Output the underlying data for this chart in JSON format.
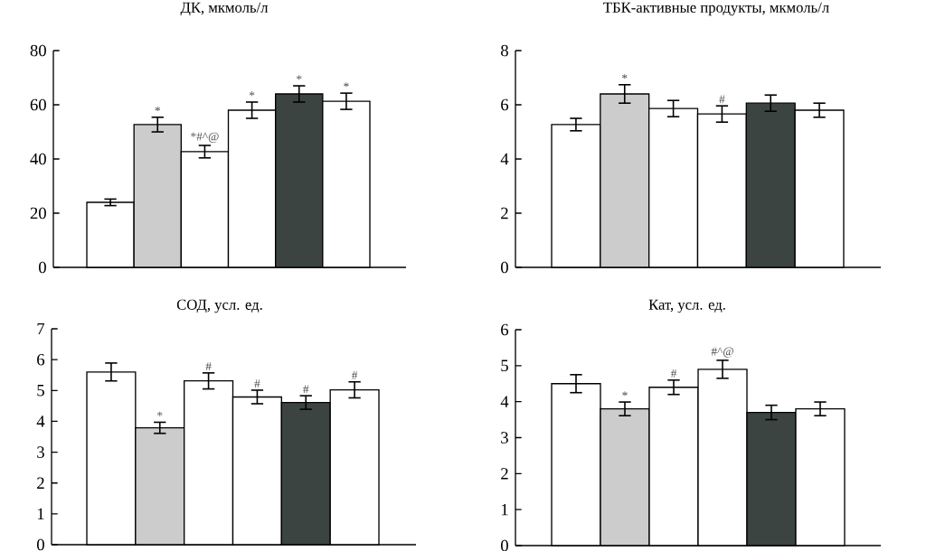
{
  "chart_data": [
    {
      "type": "bar",
      "title": "ДК, мкмоль/л",
      "categories": [
        null,
        null,
        null,
        null,
        null,
        null
      ],
      "values": [
        24,
        52.7,
        42.7,
        58,
        64,
        61.3
      ],
      "errors": [
        1.2,
        2.7,
        2.3,
        3,
        3,
        3
      ],
      "value_labels": [
        null,
        "*",
        "*#^@",
        "*",
        "*",
        "*"
      ],
      "colors": [
        "#ffffff",
        "#cccccc",
        "#ffffff",
        "#ffffff",
        "#3c4442",
        "#ffffff"
      ],
      "ylim": [
        0,
        80
      ],
      "yticks": [
        0,
        20,
        40,
        60,
        80
      ],
      "tick_labels": "y"
    },
    {
      "type": "bar",
      "title": "ТБК-активные продукты, мкмоль/л",
      "categories": [
        null,
        null,
        null,
        null,
        null,
        null
      ],
      "values": [
        5.27,
        6.4,
        5.86,
        5.66,
        6.06,
        5.8
      ],
      "errors": [
        0.23,
        0.34,
        0.3,
        0.3,
        0.3,
        0.26
      ],
      "value_labels": [
        null,
        "*",
        null,
        "#",
        null,
        null
      ],
      "colors": [
        "#ffffff",
        "#cccccc",
        "#ffffff",
        "#ffffff",
        "#3c4442",
        "#ffffff"
      ],
      "ylim": [
        0,
        8
      ],
      "yticks": [
        0,
        2,
        4,
        6,
        8
      ],
      "tick_labels": "y"
    },
    {
      "type": "bar",
      "title": "СОД, усл. ед.",
      "categories": [
        null,
        null,
        null,
        null,
        null,
        null
      ],
      "values": [
        5.6,
        3.79,
        5.31,
        4.79,
        4.61,
        5.02
      ],
      "errors": [
        0.29,
        0.18,
        0.26,
        0.22,
        0.22,
        0.26
      ],
      "value_labels": [
        null,
        "*",
        "#",
        "#",
        "#",
        "#"
      ],
      "colors": [
        "#ffffff",
        "#cccccc",
        "#ffffff",
        "#ffffff",
        "#3c4442",
        "#ffffff"
      ],
      "ylim": [
        0,
        7
      ],
      "yticks": [
        0,
        1,
        2,
        3,
        4,
        5,
        6,
        7
      ],
      "tick_labels": "y"
    },
    {
      "type": "bar",
      "title": "Кат, усл. ед.",
      "categories": [
        null,
        null,
        null,
        null,
        null,
        null
      ],
      "values": [
        4.5,
        3.8,
        4.4,
        4.9,
        3.7,
        3.8
      ],
      "errors": [
        0.25,
        0.19,
        0.2,
        0.25,
        0.2,
        0.19
      ],
      "value_labels": [
        null,
        "*",
        "#",
        "#^@",
        null,
        null
      ],
      "colors": [
        "#ffffff",
        "#cccccc",
        "#ffffff",
        "#ffffff",
        "#3c4442",
        "#ffffff"
      ],
      "ylim": [
        0,
        6
      ],
      "yticks": [
        0,
        1,
        2,
        3,
        4,
        5,
        6
      ],
      "tick_labels": "y"
    }
  ]
}
